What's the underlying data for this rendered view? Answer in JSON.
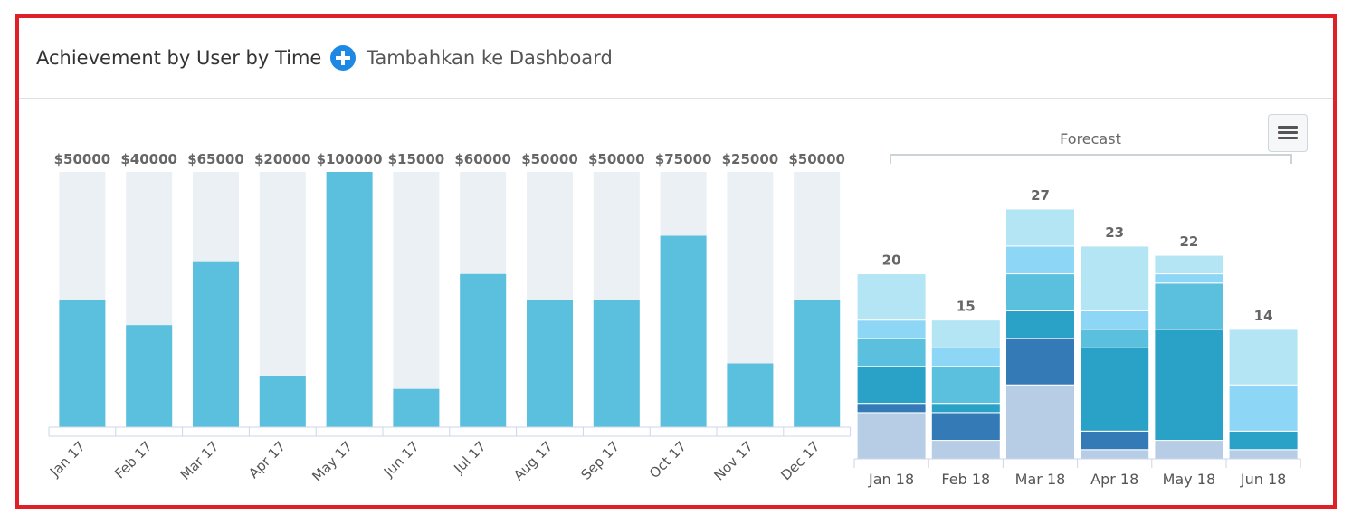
{
  "header": {
    "title": "Achievement by User by Time",
    "add_label": "Tambahkan ke Dashboard"
  },
  "icons": {
    "add": "plus-circle-icon",
    "menu": "hamburger-menu-icon"
  },
  "colors": {
    "achieved": "#5bc0de",
    "target": "#ebf0f4",
    "forecast_shades": [
      "#b7cde6",
      "#337ab7",
      "#2aa1c6",
      "#5bc0de",
      "#8ed6f6",
      "#b3e5f4"
    ],
    "frame": "#e02027",
    "accent": "#1e88e5"
  },
  "chart_data": [
    {
      "type": "bar",
      "title": "",
      "categories": [
        "Jan 17",
        "Feb 17",
        "Mar 17",
        "Apr 17",
        "May 17",
        "Jun 17",
        "Jul 17",
        "Aug 17",
        "Sep 17",
        "Oct 17",
        "Nov 17",
        "Dec 17"
      ],
      "data_labels": [
        "$50000",
        "$40000",
        "$65000",
        "$20000",
        "$100000",
        "$15000",
        "$60000",
        "$50000",
        "$50000",
        "$75000",
        "$25000",
        "$50000"
      ],
      "series": [
        {
          "values": [
            50000,
            40000,
            65000,
            20000,
            100000,
            15000,
            60000,
            50000,
            50000,
            75000,
            25000,
            50000
          ]
        }
      ],
      "target": 100000,
      "ylim": [
        0,
        100000
      ],
      "grid": false
    },
    {
      "type": "bar",
      "stacked": true,
      "annotation": "Forecast",
      "categories": [
        "Jan 18",
        "Feb 18",
        "Mar 18",
        "Apr 18",
        "May 18",
        "Jun 18"
      ],
      "totals": [
        20,
        15,
        27,
        23,
        22,
        14
      ],
      "series": [
        {
          "values": [
            5,
            2,
            8,
            1,
            2,
            1
          ]
        },
        {
          "values": [
            1,
            3,
            5,
            2,
            0,
            0
          ]
        },
        {
          "values": [
            4,
            1,
            3,
            9,
            12,
            2
          ]
        },
        {
          "values": [
            3,
            4,
            4,
            2,
            5,
            0
          ]
        },
        {
          "values": [
            2,
            2,
            3,
            2,
            1,
            5
          ]
        },
        {
          "values": [
            5,
            3,
            4,
            7,
            2,
            6
          ]
        }
      ],
      "ylim": [
        0,
        27
      ],
      "grid": false
    }
  ]
}
